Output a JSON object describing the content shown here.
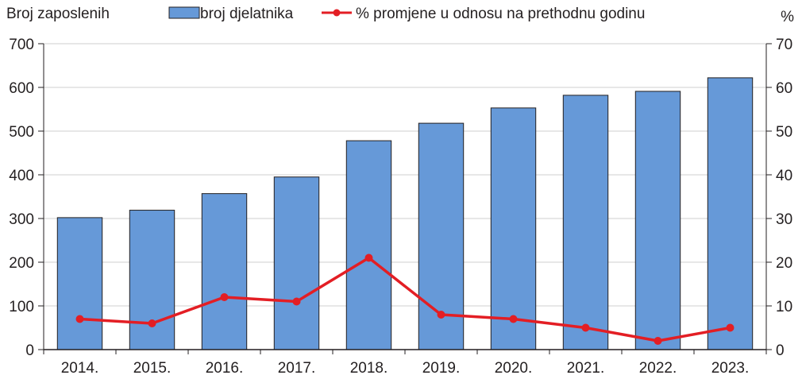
{
  "chart_data": {
    "type": "bar",
    "title": "",
    "ylabel_left": "Broj zaposlenih",
    "ylabel_right": "%",
    "categories": [
      "2014.",
      "2015.",
      "2016.",
      "2017.",
      "2018.",
      "2019.",
      "2020.",
      "2021.",
      "2022.",
      "2023."
    ],
    "ylim_left": [
      0,
      700
    ],
    "yticks_left": [
      "0",
      "100",
      "200",
      "300",
      "400",
      "500",
      "600",
      "700"
    ],
    "ylim_right": [
      0,
      70
    ],
    "yticks_right": [
      "0",
      "10",
      "20",
      "30",
      "40",
      "50",
      "60",
      "70"
    ],
    "grid": true,
    "legend_position": "top",
    "series": [
      {
        "name": "broj djelatnika",
        "type": "bar",
        "axis": "left",
        "color": "#6699d8",
        "values": [
          302,
          319,
          357,
          395,
          478,
          518,
          553,
          582,
          591,
          622
        ]
      },
      {
        "name": "% promjene u odnosu na prethodnu godinu",
        "type": "line",
        "axis": "right",
        "color": "#e31e24",
        "values": [
          7,
          6,
          12,
          11,
          21,
          8,
          7,
          5,
          2,
          5
        ]
      }
    ]
  }
}
